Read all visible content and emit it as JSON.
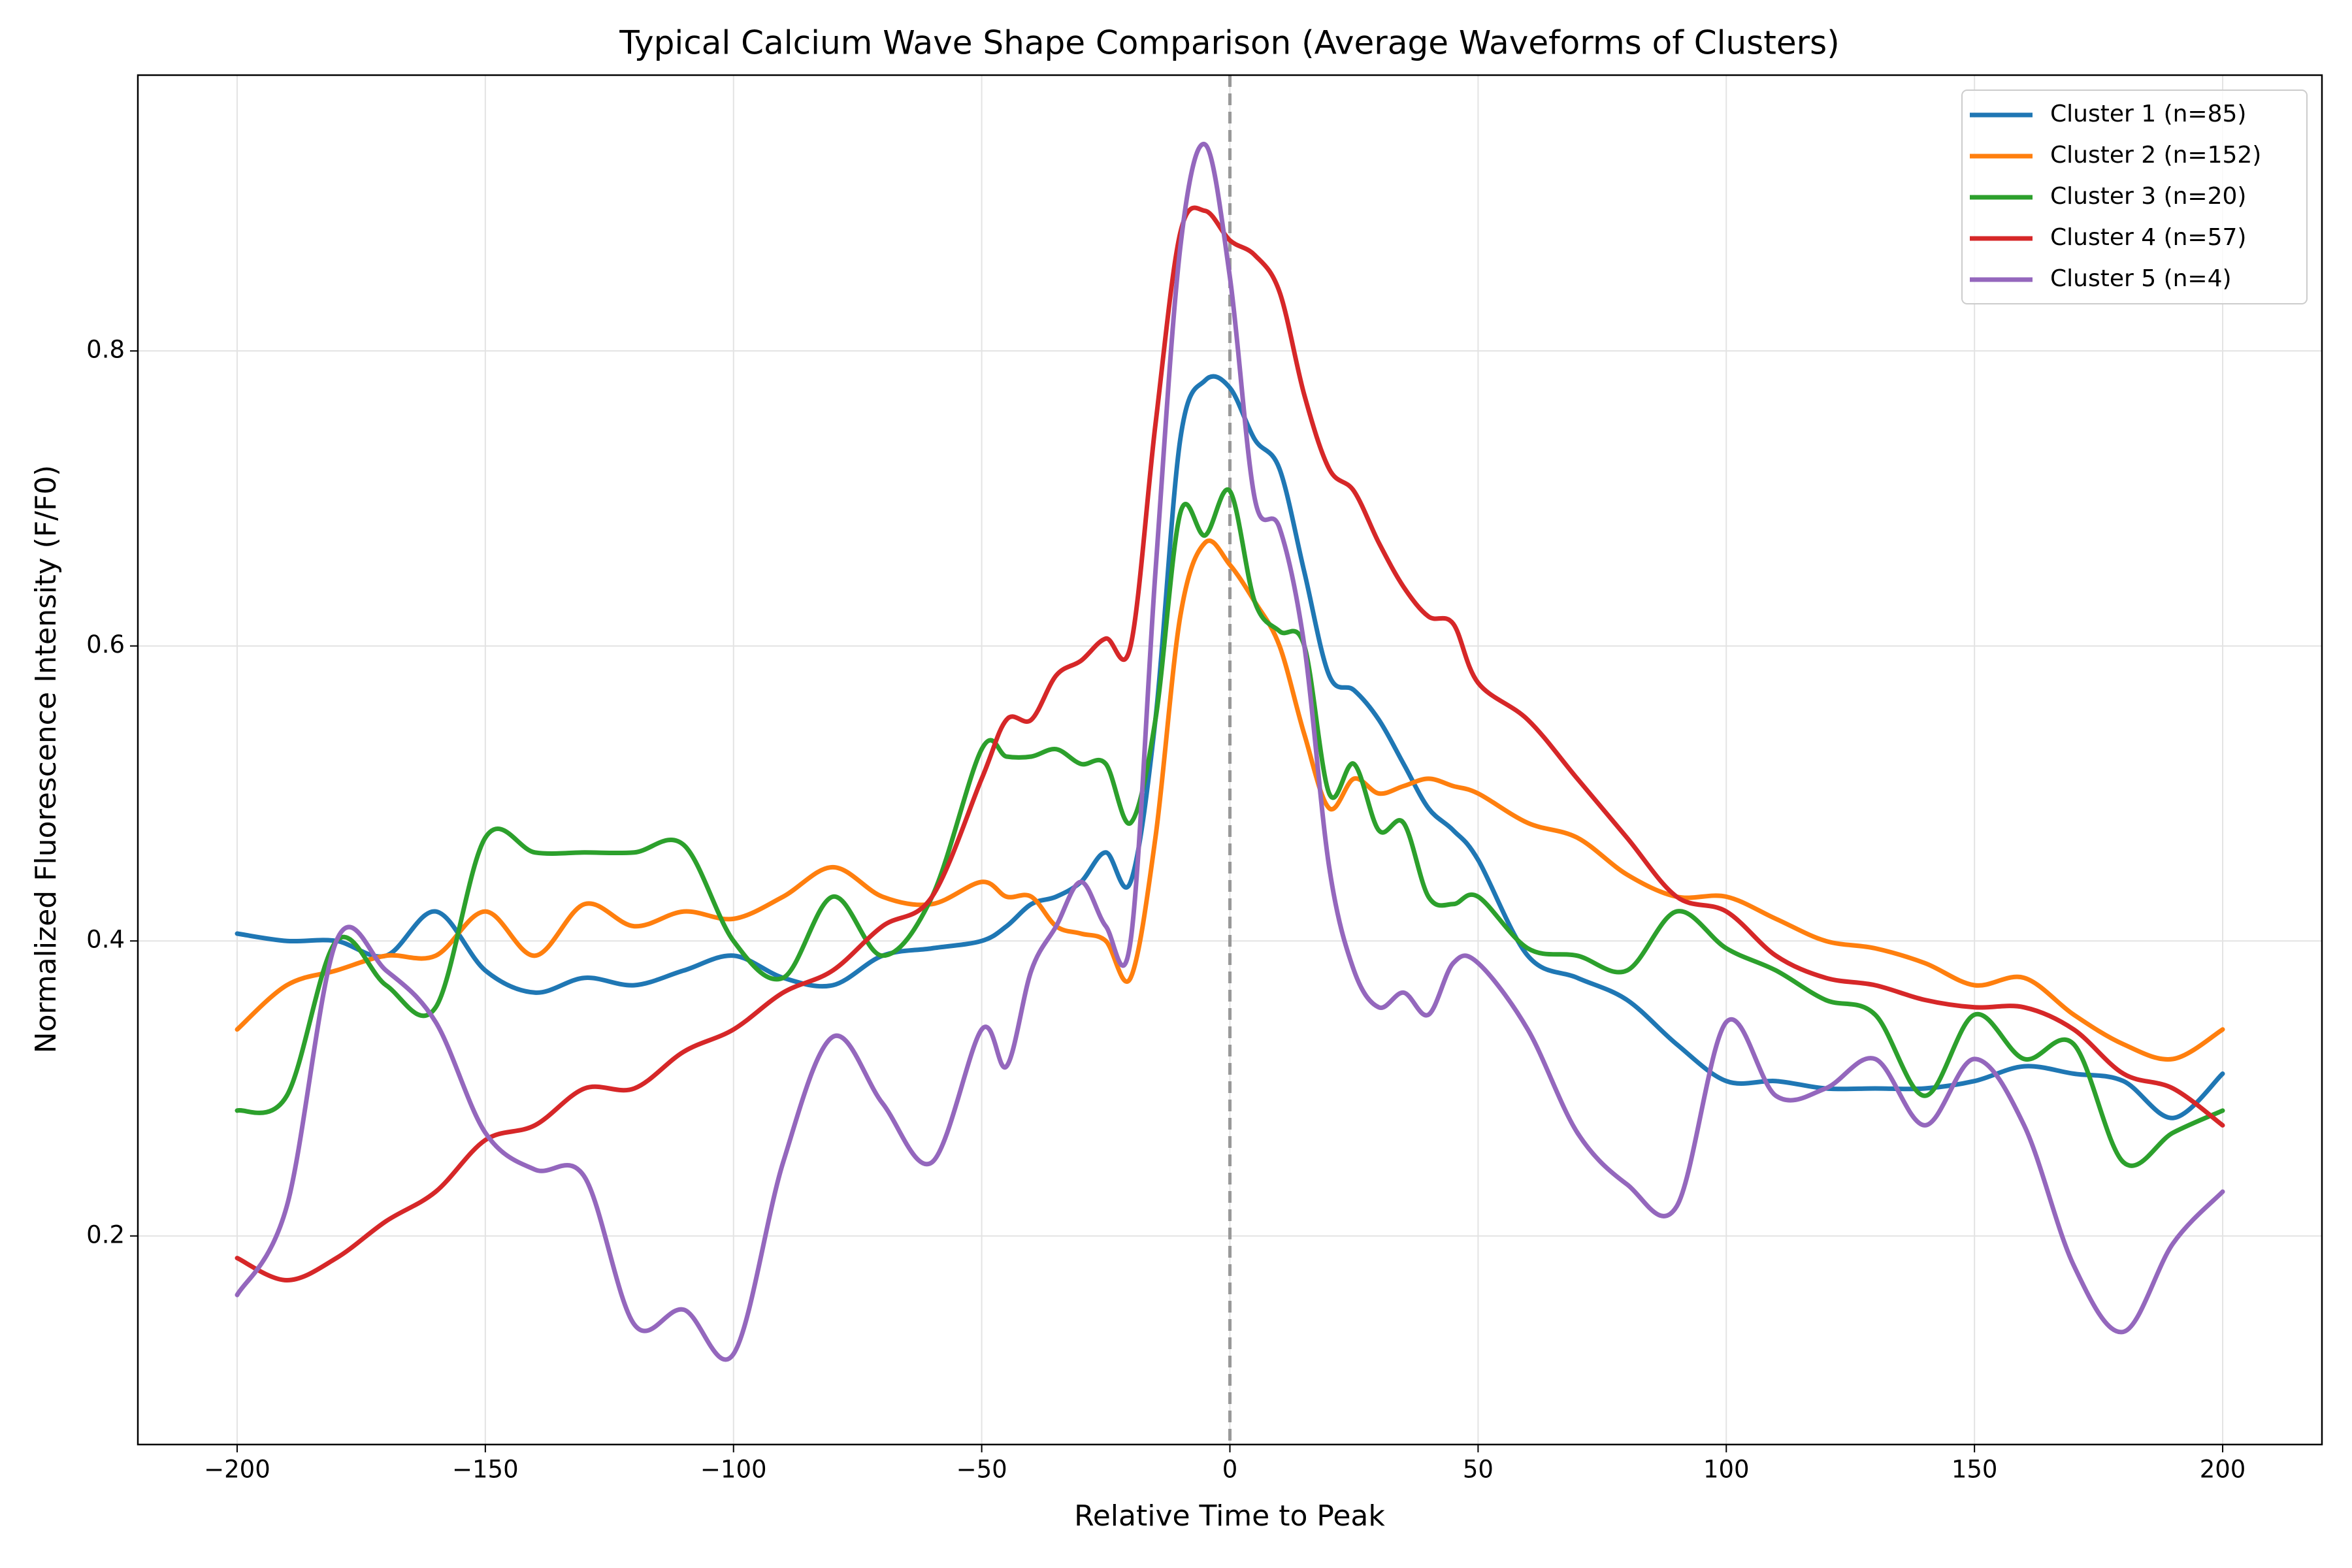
{
  "chart_data": {
    "type": "line",
    "title": "Typical Calcium Wave Shape Comparison (Average Waveforms of Clusters)",
    "x_label": "Relative Time to Peak",
    "y_label": "Normalized Fluorescence Intensity (F/F0)",
    "x": [
      -200,
      -190,
      -180,
      -170,
      -160,
      -150,
      -140,
      -130,
      -120,
      -110,
      -100,
      -90,
      -80,
      -70,
      -60,
      -50,
      -45,
      -40,
      -35,
      -30,
      -25,
      -20,
      -15,
      -10,
      -5,
      0,
      5,
      10,
      15,
      20,
      25,
      30,
      35,
      40,
      45,
      50,
      60,
      70,
      80,
      90,
      100,
      110,
      120,
      130,
      140,
      150,
      160,
      170,
      180,
      190,
      200
    ],
    "series": [
      {
        "name": "Cluster 1 (n=85)",
        "color": "#1f77b4",
        "values": [
          0.405,
          0.4,
          0.4,
          0.39,
          0.42,
          0.38,
          0.365,
          0.375,
          0.37,
          0.38,
          0.39,
          0.375,
          0.37,
          0.39,
          0.395,
          0.4,
          0.41,
          0.425,
          0.43,
          0.44,
          0.46,
          0.44,
          0.55,
          0.74,
          0.78,
          0.775,
          0.74,
          0.72,
          0.65,
          0.58,
          0.57,
          0.55,
          0.52,
          0.49,
          0.475,
          0.455,
          0.39,
          0.375,
          0.36,
          0.33,
          0.305,
          0.305,
          0.3,
          0.3,
          0.3,
          0.305,
          0.315,
          0.31,
          0.305,
          0.28,
          0.31
        ]
      },
      {
        "name": "Cluster 2 (n=152)",
        "color": "#ff7f0e",
        "values": [
          0.34,
          0.37,
          0.38,
          0.39,
          0.39,
          0.42,
          0.39,
          0.425,
          0.41,
          0.42,
          0.415,
          0.43,
          0.45,
          0.43,
          0.425,
          0.44,
          0.43,
          0.43,
          0.41,
          0.405,
          0.4,
          0.375,
          0.47,
          0.62,
          0.67,
          0.655,
          0.63,
          0.6,
          0.54,
          0.49,
          0.51,
          0.5,
          0.505,
          0.51,
          0.505,
          0.5,
          0.48,
          0.47,
          0.445,
          0.43,
          0.43,
          0.415,
          0.4,
          0.395,
          0.385,
          0.37,
          0.375,
          0.35,
          0.33,
          0.32,
          0.34
        ]
      },
      {
        "name": "Cluster 3 (n=20)",
        "color": "#2ca02c",
        "values": [
          0.285,
          0.295,
          0.4,
          0.37,
          0.355,
          0.47,
          0.46,
          0.46,
          0.46,
          0.465,
          0.4,
          0.375,
          0.43,
          0.39,
          0.43,
          0.53,
          0.525,
          0.525,
          0.53,
          0.52,
          0.52,
          0.48,
          0.55,
          0.69,
          0.675,
          0.705,
          0.63,
          0.61,
          0.6,
          0.5,
          0.52,
          0.475,
          0.48,
          0.43,
          0.425,
          0.43,
          0.395,
          0.39,
          0.38,
          0.42,
          0.395,
          0.38,
          0.36,
          0.35,
          0.295,
          0.35,
          0.32,
          0.33,
          0.25,
          0.27,
          0.285
        ]
      },
      {
        "name": "Cluster 4 (n=57)",
        "color": "#d62728",
        "values": [
          0.185,
          0.17,
          0.185,
          0.21,
          0.23,
          0.265,
          0.275,
          0.3,
          0.3,
          0.325,
          0.34,
          0.365,
          0.38,
          0.41,
          0.43,
          0.51,
          0.55,
          0.55,
          0.58,
          0.59,
          0.605,
          0.6,
          0.75,
          0.88,
          0.895,
          0.875,
          0.865,
          0.84,
          0.77,
          0.72,
          0.705,
          0.67,
          0.64,
          0.62,
          0.615,
          0.575,
          0.55,
          0.51,
          0.47,
          0.43,
          0.42,
          0.39,
          0.375,
          0.37,
          0.36,
          0.355,
          0.355,
          0.34,
          0.31,
          0.3,
          0.275
        ]
      },
      {
        "name": "Cluster 5 (n=4)",
        "color": "#9467bd",
        "values": [
          0.16,
          0.22,
          0.4,
          0.38,
          0.345,
          0.27,
          0.245,
          0.24,
          0.14,
          0.15,
          0.12,
          0.25,
          0.335,
          0.29,
          0.25,
          0.34,
          0.315,
          0.38,
          0.41,
          0.44,
          0.41,
          0.4,
          0.65,
          0.87,
          0.94,
          0.85,
          0.7,
          0.68,
          0.6,
          0.45,
          0.38,
          0.355,
          0.365,
          0.35,
          0.385,
          0.385,
          0.34,
          0.27,
          0.235,
          0.22,
          0.345,
          0.295,
          0.3,
          0.32,
          0.275,
          0.32,
          0.275,
          0.18,
          0.135,
          0.195,
          0.23
        ]
      }
    ],
    "xlim": [
      -220,
      220
    ],
    "ylim": [
      0.0586,
      0.987
    ],
    "xticks": [
      {
        "value": -200,
        "label": "−200"
      },
      {
        "value": -150,
        "label": "−150"
      },
      {
        "value": -100,
        "label": "−100"
      },
      {
        "value": -50,
        "label": "−50"
      },
      0,
      50,
      100,
      150,
      200
    ],
    "yticks": [
      0.2,
      0.4,
      0.6,
      0.8
    ],
    "grid": true,
    "vline": 0,
    "legend": "upper-right"
  }
}
